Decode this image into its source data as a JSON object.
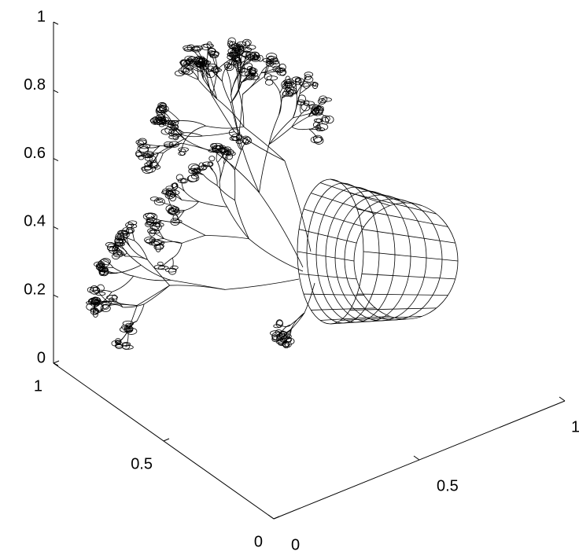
{
  "chart_data": {
    "type": "mesh3d",
    "xlim": [
      0,
      1
    ],
    "ylim": [
      0,
      1
    ],
    "zlim": [
      0,
      1
    ],
    "xticks": [
      0,
      0.5,
      1
    ],
    "yticks": [
      0,
      0.5,
      1
    ],
    "zticks": [
      0,
      0.2,
      0.4,
      0.6,
      0.8,
      1
    ],
    "color": "#000000"
  }
}
